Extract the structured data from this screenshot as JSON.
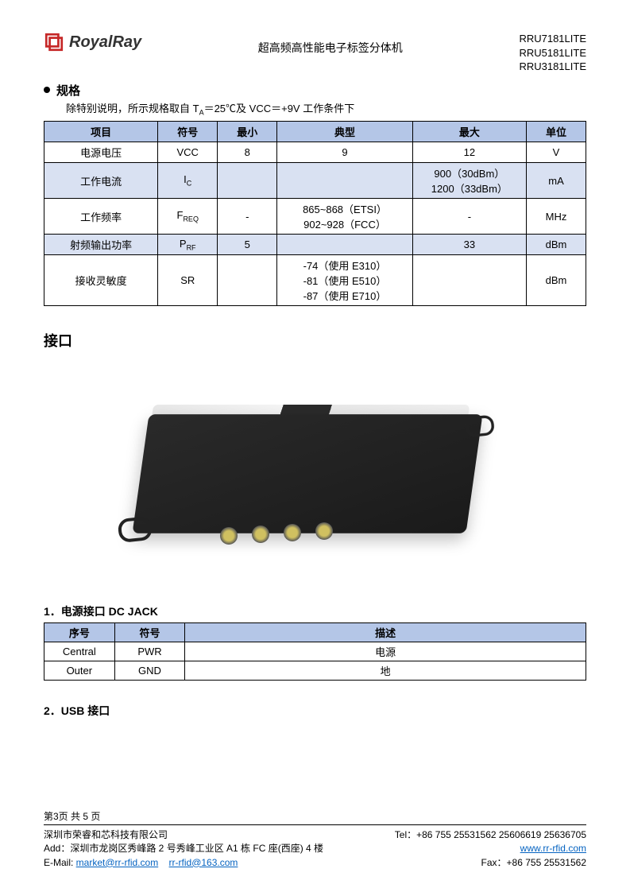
{
  "header": {
    "logo_text": "RoyalRay",
    "logo_color": "#c62828",
    "title": "超高频高性能电子标签分体机",
    "models": [
      "RRU7181LITE",
      "RRU5181LITE",
      "RRU3181LITE"
    ]
  },
  "spec_section": {
    "heading": "规格",
    "intro": "除特别说明，所示规格取自 T",
    "intro_sub": "A",
    "intro_rest": "＝25℃及 VCC＝+9V 工作条件下",
    "columns": [
      "项目",
      "符号",
      "最小",
      "典型",
      "最大",
      "单位"
    ],
    "col_widths": [
      "21%",
      "11%",
      "11%",
      "25%",
      "21%",
      "11%"
    ],
    "rows": [
      {
        "alt": false,
        "item": "电源电压",
        "symbol": "VCC",
        "min": "8",
        "typ": "9",
        "max": "12",
        "unit": "V"
      },
      {
        "alt": true,
        "item": "工作电流",
        "symbol": "I",
        "symbol_sub": "C",
        "min": "",
        "typ": "",
        "max": "900（30dBm）\n1200（33dBm）",
        "unit": "mA"
      },
      {
        "alt": false,
        "item": "工作频率",
        "symbol": "F",
        "symbol_sub": "REQ",
        "min": "-",
        "typ": "865~868（ETSI）\n902~928（FCC）",
        "max": "-",
        "unit": "MHz"
      },
      {
        "alt": true,
        "item": "射频输出功率",
        "symbol": "P",
        "symbol_sub": "RF",
        "min": "5",
        "typ": "",
        "max": "33",
        "unit": "dBm"
      },
      {
        "alt": false,
        "item": "接收灵敏度",
        "symbol": "SR",
        "min": "",
        "typ": "-74（使用 E310）\n-81（使用 E510）\n-87（使用 E710）",
        "max": "",
        "unit": "dBm"
      }
    ]
  },
  "interface_section": {
    "heading": "接口"
  },
  "dc_jack": {
    "heading": "1．电源接口 DC JACK",
    "columns": [
      "序号",
      "符号",
      "描述"
    ],
    "col_widths": [
      "13%",
      "13%",
      "74%"
    ],
    "rows": [
      {
        "seq": "Central",
        "symbol": "PWR",
        "desc": "电源"
      },
      {
        "seq": "Outer",
        "symbol": "GND",
        "desc": "地"
      }
    ]
  },
  "usb_section": {
    "heading": "2．USB 接口"
  },
  "footer": {
    "page": "第3页  共 5 页",
    "company": "深圳市荣睿和芯科技有限公司",
    "address": "Add：深圳市龙岗区秀峰路 2 号秀峰工业区 A1 栋 FC 座(西座) 4 楼",
    "email_label": "E-Mail: ",
    "email1": "market@rr-rfid.com",
    "email2": "rr-rfid@163.com",
    "tel": "Tel：+86 755 25531562 25606619 25636705",
    "web": "www.rr-rfid.com",
    "fax": "Fax：+86 755 25531562"
  }
}
